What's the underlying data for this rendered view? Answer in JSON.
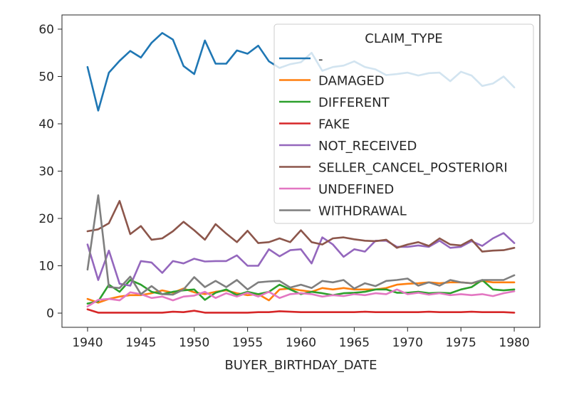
{
  "chart_data": {
    "type": "line",
    "title": "",
    "xlabel": "BUYER_BIRTHDAY_DATE",
    "ylabel": "",
    "xlim": [
      1937.6,
      1982.4
    ],
    "ylim": [
      -3,
      63
    ],
    "xticks": [
      1940,
      1945,
      1950,
      1955,
      1960,
      1965,
      1970,
      1975,
      1980
    ],
    "yticks": [
      0,
      10,
      20,
      30,
      40,
      50,
      60
    ],
    "grid": false,
    "legend": {
      "title": "CLAIM_TYPE",
      "placement": "top-right"
    },
    "x": [
      1940,
      1941,
      1942,
      1943,
      1944,
      1945,
      1946,
      1947,
      1948,
      1949,
      1950,
      1951,
      1952,
      1953,
      1954,
      1955,
      1956,
      1957,
      1958,
      1959,
      1960,
      1961,
      1962,
      1963,
      1964,
      1965,
      1966,
      1967,
      1968,
      1969,
      1970,
      1971,
      1972,
      1973,
      1974,
      1975,
      1976,
      1977,
      1978,
      1979,
      1980
    ],
    "series": [
      {
        "name": "-",
        "color": "#1f77b4",
        "values": [
          52,
          42.8,
          50.8,
          53.3,
          55.4,
          54,
          57.1,
          59.2,
          57.8,
          52.2,
          50.5,
          57.6,
          52.7,
          52.7,
          55.5,
          54.8,
          56.5,
          53.2,
          51.8,
          52.6,
          53,
          55,
          51.2,
          52,
          52.3,
          53.2,
          52,
          51.5,
          50.3,
          50.5,
          50.8,
          50.2,
          50.7,
          50.8,
          49,
          51,
          50.2,
          48,
          48.5,
          50,
          47.7
        ]
      },
      {
        "name": "DAMAGED",
        "color": "#ff7f0e",
        "values": [
          3,
          2.2,
          3,
          3.5,
          3.8,
          3.8,
          4.2,
          4.8,
          4.3,
          5.2,
          4.4,
          4,
          4.5,
          4.8,
          4.2,
          3.8,
          4,
          2.7,
          5,
          5.2,
          4.8,
          4.5,
          5.3,
          5,
          5.3,
          5,
          5,
          5,
          5.3,
          6,
          6.2,
          6.3,
          6.5,
          6.3,
          6.5,
          6.5,
          6.3,
          6.8,
          6.5,
          6.5,
          6.5
        ]
      },
      {
        "name": "DIFFERENT",
        "color": "#2ca02c",
        "values": [
          2,
          2.5,
          6,
          4.5,
          7,
          6,
          4.5,
          4,
          4.5,
          4.8,
          5,
          2.8,
          4.3,
          5,
          3.8,
          4.5,
          4,
          4.5,
          6,
          5,
          4,
          4.5,
          4.2,
          3.8,
          4.2,
          4.3,
          4.5,
          5,
          5,
          4.3,
          4.3,
          4.5,
          4.2,
          4.3,
          4.2,
          5,
          5.5,
          7,
          5,
          4.8,
          5
        ]
      },
      {
        "name": "FAKE",
        "color": "#d62728",
        "values": [
          0.8,
          0.1,
          0.1,
          0.1,
          0.1,
          0.1,
          0.1,
          0.1,
          0.3,
          0.2,
          0.5,
          0.1,
          0.1,
          0.1,
          0.1,
          0.1,
          0.2,
          0.2,
          0.4,
          0.3,
          0.2,
          0.2,
          0.2,
          0.2,
          0.2,
          0.2,
          0.3,
          0.2,
          0.2,
          0.2,
          0.2,
          0.2,
          0.3,
          0.2,
          0.2,
          0.2,
          0.3,
          0.2,
          0.2,
          0.2,
          0.1
        ]
      },
      {
        "name": "NOT_RECEIVED",
        "color": "#9467bd",
        "values": [
          14.5,
          7,
          13.2,
          6.2,
          5.8,
          11,
          10.7,
          8.5,
          11,
          10.5,
          11.5,
          10.9,
          11,
          11,
          12.2,
          10,
          10,
          13.5,
          12,
          13.3,
          13.5,
          10.5,
          16,
          14.5,
          11.9,
          13.5,
          13,
          15.3,
          15.3,
          14,
          14,
          14.3,
          14,
          15.3,
          13.8,
          14,
          15.2,
          14.2,
          15.8,
          16.9,
          14.8
        ]
      },
      {
        "name": "SELLER_CANCEL_POSTERIORI",
        "color": "#8c564b",
        "values": [
          17.3,
          17.7,
          19,
          23.7,
          16.7,
          18.4,
          15.5,
          15.8,
          17.3,
          19.3,
          17.5,
          15.5,
          18.8,
          16.8,
          15,
          17.4,
          14.8,
          15,
          15.8,
          15,
          17.5,
          15,
          14.5,
          15.8,
          16,
          15.6,
          15.3,
          15.2,
          15.5,
          13.8,
          14.5,
          15,
          14.2,
          15.8,
          14.5,
          14.3,
          15.5,
          13,
          13.2,
          13.3,
          13.8
        ]
      },
      {
        "name": "UNDEFINED",
        "color": "#e377c2",
        "values": [
          1.4,
          2.8,
          3,
          2.7,
          4.4,
          4,
          3.2,
          3.5,
          2.7,
          3.5,
          3.7,
          4.5,
          3.2,
          4.2,
          3.5,
          4.3,
          3.5,
          4.5,
          3.2,
          4,
          4.2,
          4,
          3.5,
          3.8,
          3.6,
          4,
          3.8,
          4.2,
          4,
          5,
          4,
          4.3,
          3.9,
          4.2,
          3.8,
          4,
          3.8,
          4,
          3.6,
          4.2,
          4.6
        ]
      },
      {
        "name": "WITHDRAWAL",
        "color": "#7f7f7f",
        "values": [
          9.2,
          24.9,
          5.5,
          5.3,
          7.7,
          4,
          5.7,
          4,
          3.9,
          5,
          7.6,
          5.5,
          6.8,
          5.5,
          7,
          5,
          6.5,
          6.7,
          6.8,
          5.4,
          6,
          5.3,
          6.8,
          6.5,
          7,
          5.2,
          6.3,
          5.7,
          6.8,
          7,
          7.3,
          5.8,
          6.5,
          5.8,
          7,
          6.5,
          6.3,
          7,
          7,
          7,
          8
        ]
      }
    ]
  }
}
